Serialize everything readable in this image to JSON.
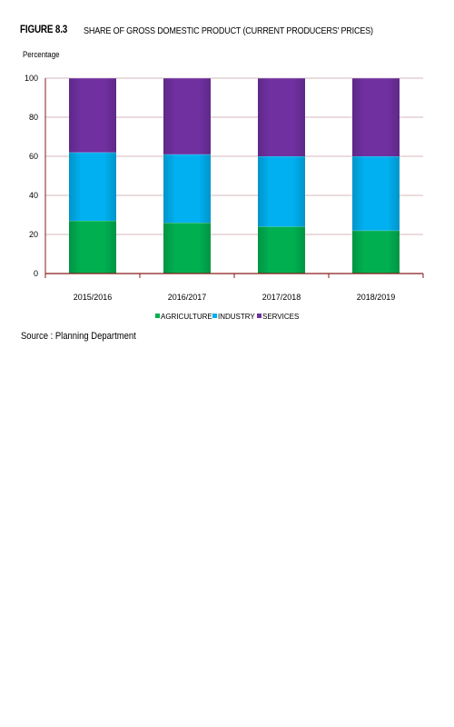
{
  "figure": {
    "label": "FIGURE 8.3",
    "title": "SHARE OF GROSS DOMESTIC PRODUCT (CURRENT PRODUCERS' PRICES)",
    "source": "Source : Planning Department"
  },
  "chart_data": {
    "type": "bar",
    "stacked": true,
    "ylabel": "Percentage",
    "xlabel": "",
    "ylim": [
      0,
      100
    ],
    "yticks": [
      0,
      20,
      40,
      60,
      80,
      100
    ],
    "grid": true,
    "legend_position": "bottom",
    "categories": [
      "2015/2016",
      "2016/2017",
      "2017/2018",
      "2018/2019"
    ],
    "series": [
      {
        "name": "AGRICULTURE",
        "color": "#00b050",
        "values": [
          27,
          26,
          24,
          22
        ]
      },
      {
        "name": "INDUSTRY",
        "color": "#00b0f0",
        "values": [
          35,
          35,
          36,
          38
        ]
      },
      {
        "name": "SERVICES",
        "color": "#7030a0",
        "values": [
          38,
          39,
          40,
          40
        ]
      }
    ]
  }
}
